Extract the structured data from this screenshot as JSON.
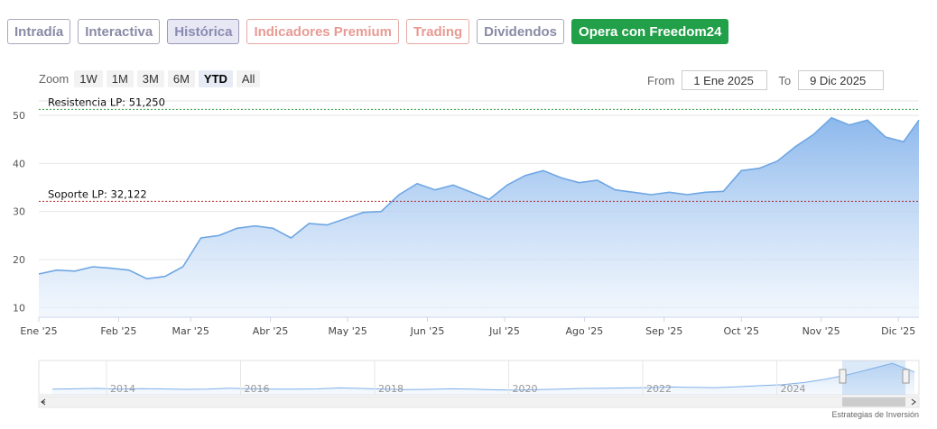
{
  "tabs": [
    {
      "label": "Intradía",
      "style": "gray"
    },
    {
      "label": "Interactiva",
      "style": "gray"
    },
    {
      "label": "Histórica",
      "style": "active"
    },
    {
      "label": "Indicadores Premium",
      "style": "red"
    },
    {
      "label": "Trading",
      "style": "red"
    },
    {
      "label": "Dividendos",
      "style": "gray"
    },
    {
      "label": "Opera con Freedom24",
      "style": "green"
    }
  ],
  "zoom": {
    "label": "Zoom",
    "options": [
      "1W",
      "1M",
      "3M",
      "6M",
      "YTD",
      "All"
    ],
    "selected": "YTD"
  },
  "range": {
    "from_label": "From",
    "from_value": "1 Ene 2025",
    "to_label": "To",
    "to_value": "9 Dic 2025"
  },
  "chart_data": {
    "type": "area",
    "x_tick_labels": [
      "Ene '25",
      "Feb '25",
      "Mar '25",
      "Abr '25",
      "May '25",
      "Jun '25",
      "Jul '25",
      "Ago '25",
      "Sep '25",
      "Oct '25",
      "Nov '25",
      "Dic '25"
    ],
    "y_ticks": [
      10,
      20,
      30,
      40,
      50
    ],
    "ylim": [
      8,
      53
    ],
    "series": [
      {
        "x": [
          "2025-01-01",
          "2025-01-08",
          "2025-01-15",
          "2025-01-22",
          "2025-01-29",
          "2025-02-05",
          "2025-02-12",
          "2025-02-19",
          "2025-02-26",
          "2025-03-05",
          "2025-03-12",
          "2025-03-19",
          "2025-03-26",
          "2025-04-02",
          "2025-04-09",
          "2025-04-16",
          "2025-04-23",
          "2025-04-30",
          "2025-05-07",
          "2025-05-14",
          "2025-05-21",
          "2025-05-28",
          "2025-06-04",
          "2025-06-11",
          "2025-06-18",
          "2025-06-25",
          "2025-07-02",
          "2025-07-09",
          "2025-07-16",
          "2025-07-23",
          "2025-07-30",
          "2025-08-06",
          "2025-08-13",
          "2025-08-20",
          "2025-08-27",
          "2025-09-03",
          "2025-09-10",
          "2025-09-17",
          "2025-09-24",
          "2025-10-01",
          "2025-10-08",
          "2025-10-15",
          "2025-10-22",
          "2025-10-29",
          "2025-11-05",
          "2025-11-12",
          "2025-11-19",
          "2025-11-26",
          "2025-12-03",
          "2025-12-09"
        ],
        "values": [
          17.0,
          17.8,
          17.6,
          18.5,
          18.2,
          17.8,
          16.0,
          16.5,
          18.5,
          24.5,
          25.0,
          26.5,
          27.0,
          26.5,
          24.5,
          27.5,
          27.2,
          28.5,
          29.8,
          30.0,
          33.5,
          35.8,
          34.5,
          35.5,
          34.0,
          32.5,
          35.5,
          37.5,
          38.5,
          37.0,
          36.0,
          36.5,
          34.5,
          34.0,
          33.5,
          34.0,
          33.5,
          34.0,
          34.2,
          38.5,
          39.0,
          40.5,
          43.5,
          46.0,
          49.5,
          48.0,
          49.0,
          45.5,
          44.5,
          49.0
        ]
      }
    ],
    "annotations": [
      {
        "label": "Resistencia LP: 51,250",
        "value": 51.25,
        "color": "#2e9e3e"
      },
      {
        "label": "Soporte LP: 32,122",
        "value": 32.122,
        "color": "#b02a2a"
      }
    ],
    "navigator": {
      "year_labels": [
        "2014",
        "2016",
        "2018",
        "2020",
        "2022",
        "2024"
      ],
      "values": [
        14,
        14.2,
        14.5,
        14.0,
        14.3,
        14.1,
        13.8,
        14.0,
        14.6,
        14.2,
        14.0,
        13.9,
        14.1,
        14.8,
        14.4,
        14.0,
        13.6,
        13.8,
        14.2,
        14.0,
        13.5,
        13.2,
        13.6,
        14.0,
        14.4,
        14.6,
        14.8,
        15.0,
        15.4,
        15.2,
        15.0,
        15.6,
        16.4,
        17.0,
        18.5,
        21.0,
        24.0,
        28.0,
        32.0,
        26.0
      ]
    },
    "credit": "Estrategias de Inversión"
  }
}
